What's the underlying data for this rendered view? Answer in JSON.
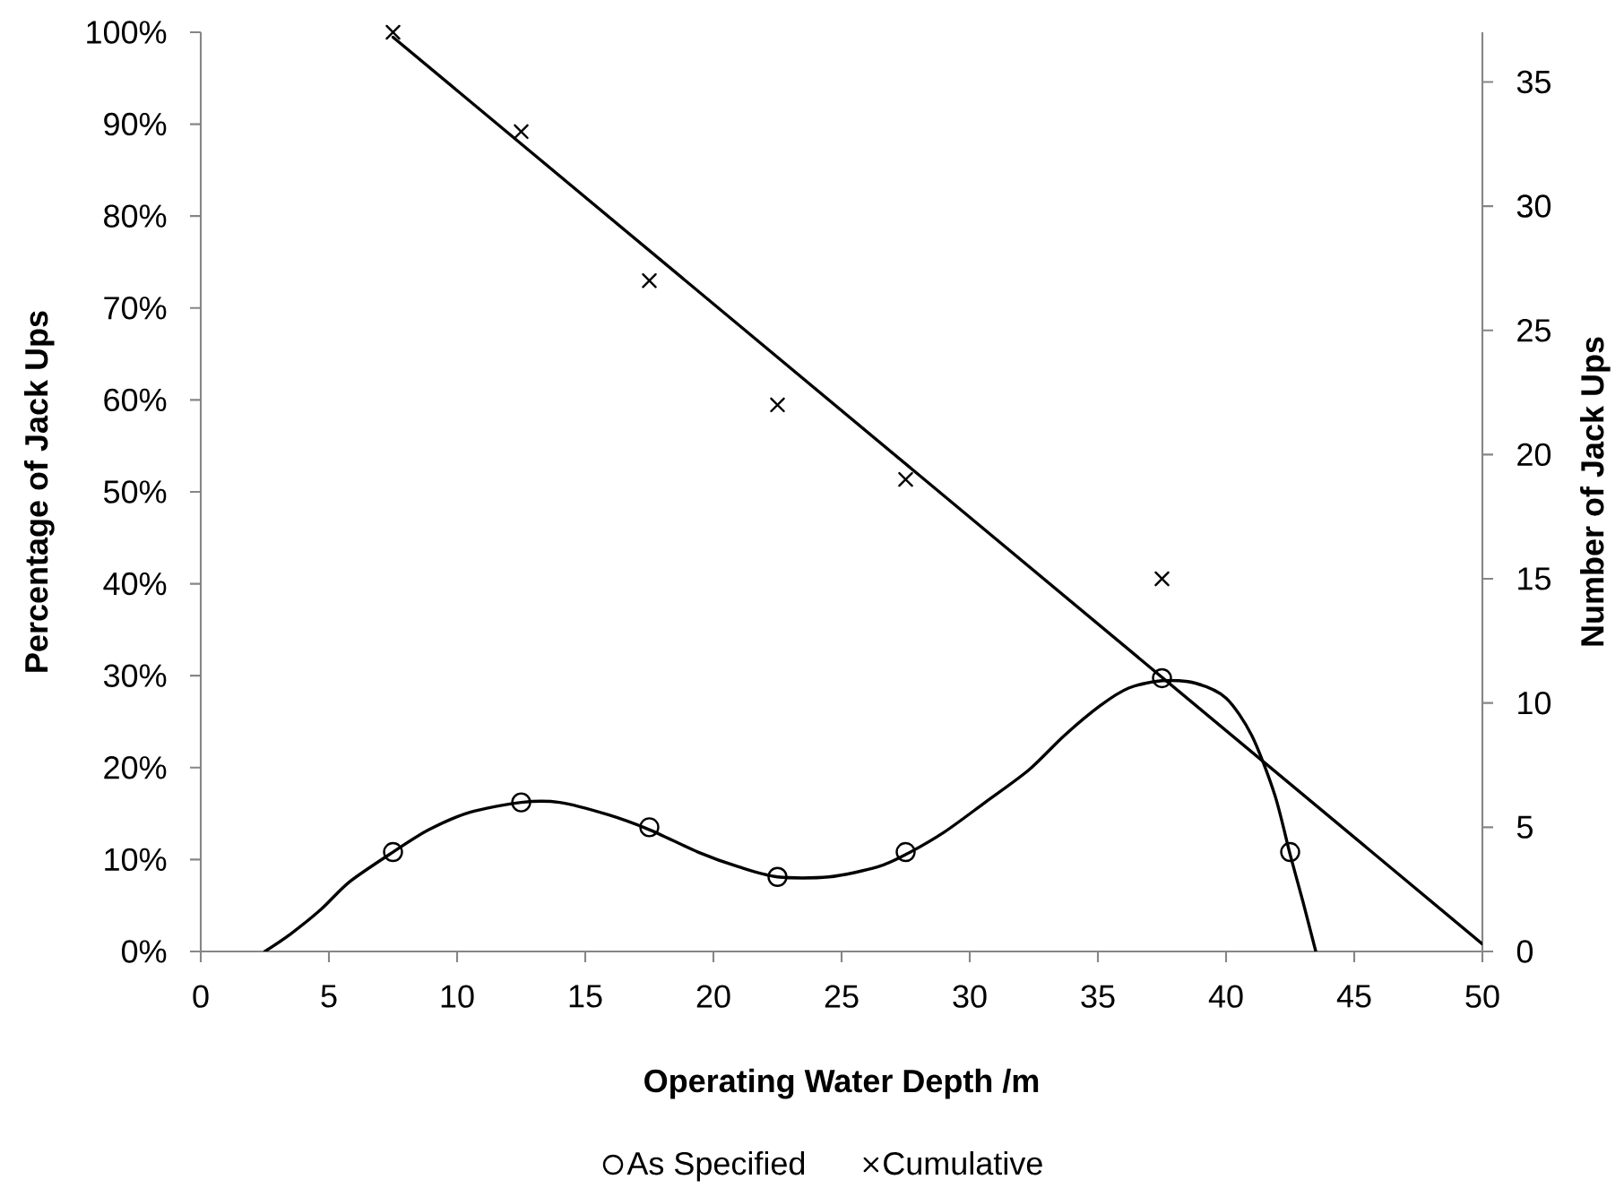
{
  "chart_data": {
    "type": "scatter",
    "xlabel": "Operating Water Depth /m",
    "ylabel": "Percentage of Jack Ups",
    "y2label": "Number of Jack Ups",
    "xlim": [
      0,
      50
    ],
    "xticks": [
      0,
      5,
      10,
      15,
      20,
      25,
      30,
      35,
      40,
      45,
      50
    ],
    "ylim": [
      0,
      100
    ],
    "yticks": [
      {
        "value": 0,
        "label": "0%"
      },
      {
        "value": 10,
        "label": "10%"
      },
      {
        "value": 20,
        "label": "20%"
      },
      {
        "value": 30,
        "label": "30%"
      },
      {
        "value": 40,
        "label": "40%"
      },
      {
        "value": 50,
        "label": "50%"
      },
      {
        "value": 60,
        "label": "60%"
      },
      {
        "value": 70,
        "label": "70%"
      },
      {
        "value": 80,
        "label": "80%"
      },
      {
        "value": 90,
        "label": "90%"
      },
      {
        "value": 100,
        "label": "100%"
      }
    ],
    "y2lim": [
      0,
      37
    ],
    "y2ticks": [
      0,
      5,
      10,
      15,
      20,
      25,
      30,
      35
    ],
    "legend": "bottom",
    "series": [
      {
        "name": "As Specified",
        "marker": "circle",
        "color": "#000000",
        "axis": "y2",
        "x": [
          7.5,
          12.5,
          17.5,
          22.5,
          27.5,
          37.5,
          42.5
        ],
        "values": [
          4,
          6,
          5,
          3,
          4,
          11,
          4
        ]
      },
      {
        "name": "Cumulative",
        "marker": "cross",
        "color": "#000000",
        "axis": "y2",
        "x": [
          7.5,
          12.5,
          17.5,
          22.5,
          27.5,
          37.5
        ],
        "values": [
          37,
          33,
          27,
          22,
          19,
          15
        ]
      },
      {
        "type": "line",
        "marker": "none",
        "color": "#000000",
        "axis": "y2",
        "x": [
          2.5,
          3.5,
          4.7,
          5.8,
          7.5,
          8.9,
          10.5,
          12.5,
          14.0,
          15.9,
          17.5,
          19.4,
          21.0,
          22.5,
          24.5,
          26.4,
          27.5,
          29.0,
          30.6,
          32.3,
          33.7,
          35.1,
          36.2,
          37.5,
          38.8,
          40.0,
          41.0,
          41.9,
          42.5,
          43.0,
          43.5
        ],
        "values": [
          0,
          0.7,
          1.7,
          2.8,
          4.0,
          4.9,
          5.6,
          6.0,
          6.0,
          5.5,
          4.9,
          4.0,
          3.4,
          3.0,
          3.0,
          3.4,
          3.9,
          4.8,
          6.0,
          7.3,
          8.7,
          9.9,
          10.6,
          10.9,
          10.8,
          10.2,
          8.7,
          6.3,
          3.9,
          2.0,
          0
        ]
      },
      {
        "type": "line",
        "marker": "none",
        "color": "#000000",
        "axis": "y2",
        "x": [
          7.5,
          50
        ],
        "values": [
          36.8,
          0.3
        ]
      }
    ]
  }
}
